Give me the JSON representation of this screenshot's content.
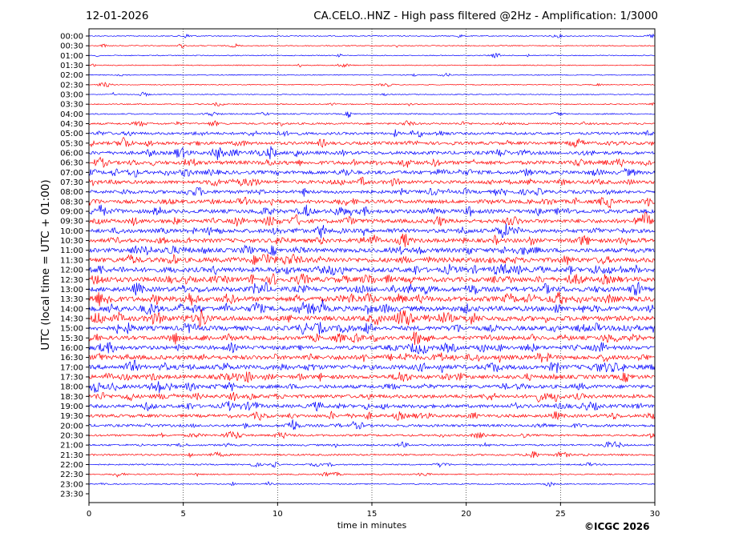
{
  "header": {
    "date": "12-01-2026",
    "title": "CA.CELO..HNZ - High pass filtered @2Hz - Amplification: 1/3000"
  },
  "footer": {
    "copyright": "©ICGC 2026"
  },
  "chart_data": {
    "type": "line",
    "title": "CA.CELO..HNZ - High pass filtered @2Hz - Amplification: 1/3000",
    "subtitle": "12-01-2026",
    "xlabel": "time in minutes",
    "ylabel": "UTC (local time = UTC + 01:00)",
    "xlim": [
      0,
      30
    ],
    "x_ticks": [
      "0",
      "5",
      "10",
      "15",
      "20",
      "25",
      "30"
    ],
    "x_grid": true,
    "trace_colors": [
      "#0000ff",
      "#ff0000"
    ],
    "rows": [
      "00:00",
      "00:30",
      "01:00",
      "01:30",
      "02:00",
      "02:30",
      "03:00",
      "03:30",
      "04:00",
      "04:30",
      "05:00",
      "05:30",
      "06:00",
      "06:30",
      "07:00",
      "07:30",
      "08:00",
      "08:30",
      "09:00",
      "09:30",
      "10:00",
      "10:30",
      "11:00",
      "11:30",
      "12:00",
      "12:30",
      "13:00",
      "13:30",
      "14:00",
      "14:30",
      "15:00",
      "15:30",
      "16:00",
      "16:30",
      "17:00",
      "17:30",
      "18:00",
      "18:30",
      "19:00",
      "19:30",
      "20:00",
      "20:30",
      "21:00",
      "21:30",
      "22:00",
      "22:30",
      "23:00",
      "23:30"
    ],
    "relative_activity": [
      0.05,
      0.06,
      0.05,
      0.04,
      0.04,
      0.04,
      0.04,
      0.07,
      0.1,
      0.22,
      0.35,
      0.45,
      0.5,
      0.55,
      0.55,
      0.5,
      0.5,
      0.55,
      0.6,
      0.6,
      0.6,
      0.6,
      0.65,
      0.75,
      0.75,
      0.75,
      0.75,
      0.8,
      0.8,
      0.8,
      0.7,
      0.6,
      0.6,
      0.65,
      0.7,
      0.6,
      0.55,
      0.55,
      0.5,
      0.45,
      0.35,
      0.25,
      0.2,
      0.2,
      0.12,
      0.1,
      0.08,
      0.0
    ]
  }
}
